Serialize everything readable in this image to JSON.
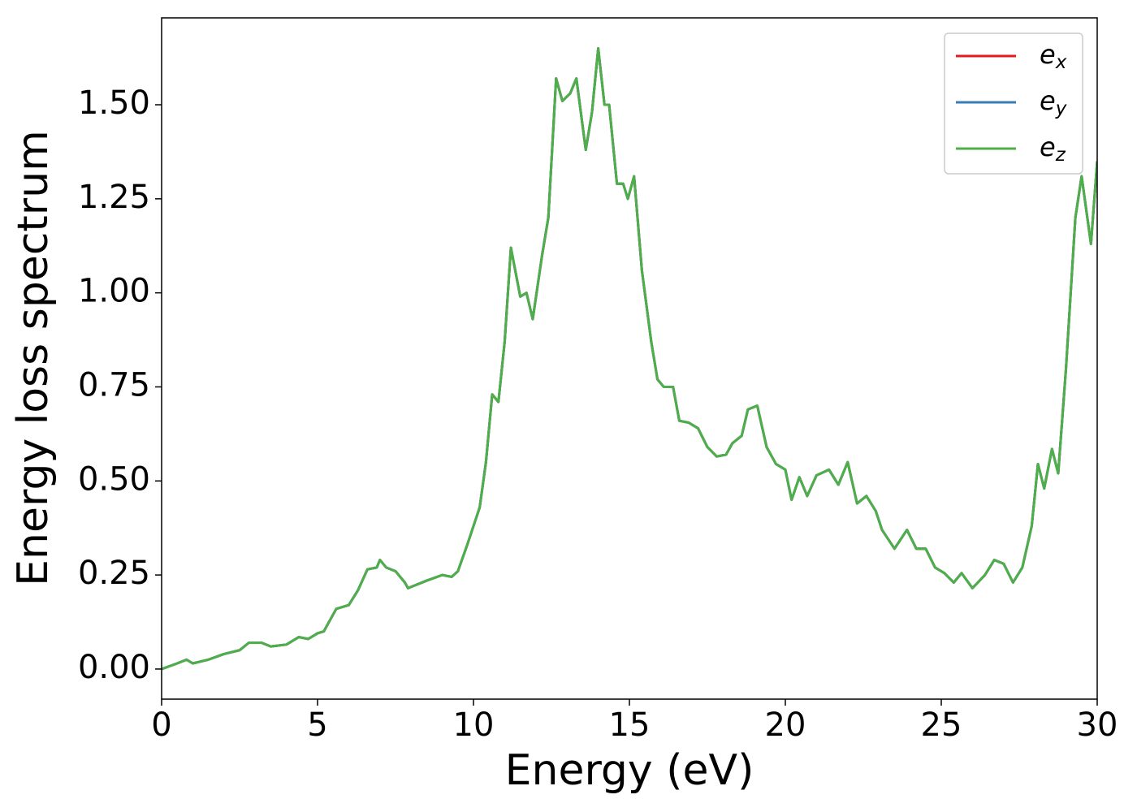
{
  "chart_data": {
    "type": "line",
    "xlabel": "Energy (eV)",
    "ylabel": "Energy loss spectrum",
    "x": [
      0,
      0.5,
      0.8,
      1.0,
      1.5,
      2,
      2.5,
      2.8,
      3.2,
      3.5,
      4,
      4.4,
      4.7,
      5,
      5.2,
      5.4,
      5.6,
      6,
      6.3,
      6.6,
      6.9,
      7.0,
      7.2,
      7.5,
      7.8,
      7.9,
      8.2,
      8.5,
      9,
      9.3,
      9.5,
      9.8,
      10.2,
      10.4,
      10.6,
      10.8,
      11.0,
      11.2,
      11.5,
      11.7,
      11.9,
      12.2,
      12.4,
      12.65,
      12.85,
      13.1,
      13.3,
      13.6,
      13.8,
      14.0,
      14.2,
      14.35,
      14.6,
      14.8,
      14.95,
      15.15,
      15.4,
      15.7,
      15.9,
      16.1,
      16.4,
      16.6,
      16.9,
      17.2,
      17.5,
      17.8,
      18.1,
      18.3,
      18.6,
      18.8,
      19.1,
      19.4,
      19.7,
      20.0,
      20.2,
      20.45,
      20.7,
      21.0,
      21.4,
      21.7,
      22.0,
      22.3,
      22.6,
      22.9,
      23.1,
      23.5,
      23.9,
      24.2,
      24.5,
      24.8,
      25.1,
      25.4,
      25.65,
      26.0,
      26.4,
      26.7,
      27.0,
      27.3,
      27.6,
      27.9,
      28.1,
      28.3,
      28.55,
      28.75,
      29.0,
      29.3,
      29.5,
      29.8,
      30
    ],
    "series": [
      {
        "name": "ex",
        "color": "#e41a1c",
        "values": [
          0.0,
          0.015,
          0.025,
          0.015,
          0.025,
          0.04,
          0.05,
          0.07,
          0.07,
          0.06,
          0.065,
          0.085,
          0.08,
          0.095,
          0.1,
          0.13,
          0.16,
          0.17,
          0.21,
          0.265,
          0.27,
          0.29,
          0.27,
          0.26,
          0.23,
          0.215,
          0.225,
          0.235,
          0.25,
          0.245,
          0.26,
          0.33,
          0.43,
          0.55,
          0.73,
          0.71,
          0.87,
          1.12,
          0.99,
          1.0,
          0.93,
          1.1,
          1.2,
          1.57,
          1.51,
          1.53,
          1.57,
          1.38,
          1.48,
          1.65,
          1.5,
          1.5,
          1.29,
          1.29,
          1.25,
          1.31,
          1.06,
          0.87,
          0.77,
          0.75,
          0.75,
          0.66,
          0.655,
          0.64,
          0.59,
          0.565,
          0.57,
          0.6,
          0.62,
          0.69,
          0.7,
          0.59,
          0.545,
          0.53,
          0.45,
          0.51,
          0.46,
          0.515,
          0.53,
          0.49,
          0.55,
          0.44,
          0.46,
          0.42,
          0.37,
          0.32,
          0.37,
          0.32,
          0.32,
          0.27,
          0.255,
          0.23,
          0.255,
          0.215,
          0.25,
          0.29,
          0.28,
          0.23,
          0.27,
          0.38,
          0.545,
          0.48,
          0.585,
          0.52,
          0.8,
          1.2,
          1.31,
          1.13,
          1.35
        ]
      },
      {
        "name": "ey",
        "color": "#377eb8",
        "values": [
          0.0,
          0.015,
          0.025,
          0.015,
          0.025,
          0.04,
          0.05,
          0.07,
          0.07,
          0.06,
          0.065,
          0.085,
          0.08,
          0.095,
          0.1,
          0.13,
          0.16,
          0.17,
          0.21,
          0.265,
          0.27,
          0.29,
          0.27,
          0.26,
          0.23,
          0.215,
          0.225,
          0.235,
          0.25,
          0.245,
          0.26,
          0.33,
          0.43,
          0.55,
          0.73,
          0.71,
          0.87,
          1.12,
          0.99,
          1.0,
          0.93,
          1.1,
          1.2,
          1.57,
          1.51,
          1.53,
          1.57,
          1.38,
          1.48,
          1.65,
          1.5,
          1.5,
          1.29,
          1.29,
          1.25,
          1.31,
          1.06,
          0.87,
          0.77,
          0.75,
          0.75,
          0.66,
          0.655,
          0.64,
          0.59,
          0.565,
          0.57,
          0.6,
          0.62,
          0.69,
          0.7,
          0.59,
          0.545,
          0.53,
          0.45,
          0.51,
          0.46,
          0.515,
          0.53,
          0.49,
          0.55,
          0.44,
          0.46,
          0.42,
          0.37,
          0.32,
          0.37,
          0.32,
          0.32,
          0.27,
          0.255,
          0.23,
          0.255,
          0.215,
          0.25,
          0.29,
          0.28,
          0.23,
          0.27,
          0.38,
          0.545,
          0.48,
          0.585,
          0.52,
          0.8,
          1.2,
          1.31,
          1.13,
          1.35
        ]
      },
      {
        "name": "ez",
        "color": "#4daf4a",
        "values": [
          0.0,
          0.015,
          0.025,
          0.015,
          0.025,
          0.04,
          0.05,
          0.07,
          0.07,
          0.06,
          0.065,
          0.085,
          0.08,
          0.095,
          0.1,
          0.13,
          0.16,
          0.17,
          0.21,
          0.265,
          0.27,
          0.29,
          0.27,
          0.26,
          0.23,
          0.215,
          0.225,
          0.235,
          0.25,
          0.245,
          0.26,
          0.33,
          0.43,
          0.55,
          0.73,
          0.71,
          0.87,
          1.12,
          0.99,
          1.0,
          0.93,
          1.1,
          1.2,
          1.57,
          1.51,
          1.53,
          1.57,
          1.38,
          1.48,
          1.65,
          1.5,
          1.5,
          1.29,
          1.29,
          1.25,
          1.31,
          1.06,
          0.87,
          0.77,
          0.75,
          0.75,
          0.66,
          0.655,
          0.64,
          0.59,
          0.565,
          0.57,
          0.6,
          0.62,
          0.69,
          0.7,
          0.59,
          0.545,
          0.53,
          0.45,
          0.51,
          0.46,
          0.515,
          0.53,
          0.49,
          0.55,
          0.44,
          0.46,
          0.42,
          0.37,
          0.32,
          0.37,
          0.32,
          0.32,
          0.27,
          0.255,
          0.23,
          0.255,
          0.215,
          0.25,
          0.29,
          0.28,
          0.23,
          0.27,
          0.38,
          0.545,
          0.48,
          0.585,
          0.52,
          0.8,
          1.2,
          1.31,
          1.13,
          1.35
        ]
      }
    ],
    "xlim": [
      0,
      30
    ],
    "xticks": [
      0,
      5,
      10,
      15,
      20,
      25,
      30
    ],
    "ylim": [
      -0.08,
      1.731
    ],
    "yticks": [
      {
        "value": 0,
        "label": "0.00"
      },
      {
        "value": 0.25,
        "label": "0.25"
      },
      {
        "value": 0.5,
        "label": "0.50"
      },
      {
        "value": 0.75,
        "label": "0.75"
      },
      {
        "value": 1.0,
        "label": "1.00"
      },
      {
        "value": 1.25,
        "label": "1.25"
      },
      {
        "value": 1.5,
        "label": "1.50"
      }
    ],
    "legend": "upper right",
    "grid": false
  }
}
